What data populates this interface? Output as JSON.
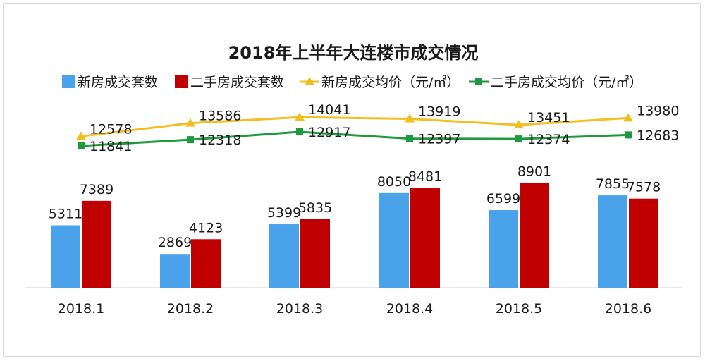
{
  "chart_data": {
    "type": "bar",
    "title": "2018年上半年大连楼市成交情况",
    "categories": [
      "2018.1",
      "2018.2",
      "2018.3",
      "2018.4",
      "2018.5",
      "2018.6"
    ],
    "bar_series": [
      {
        "name": "新房成交套数",
        "values": [
          5311,
          2869,
          5399,
          8050,
          6599,
          7855
        ],
        "color": "#4aa3ea"
      },
      {
        "name": "二手房成交套数",
        "values": [
          7389,
          4123,
          5835,
          8481,
          8901,
          7578
        ],
        "color": "#c00000"
      }
    ],
    "line_series": [
      {
        "name": "新房成交均价（元/㎡）",
        "values": [
          12578,
          13586,
          14041,
          13919,
          13451,
          13980
        ],
        "color": "#f0c020",
        "marker": "triangle"
      },
      {
        "name": "二手房成交均价（元/㎡）",
        "values": [
          11841,
          12318,
          12917,
          12397,
          12374,
          12683
        ],
        "color": "#1e9a3c",
        "marker": "square"
      }
    ],
    "bar_ylim": [
      0,
      9000
    ],
    "line_ylim": [
      0,
      14000
    ],
    "legend_position": "top",
    "grid": false
  }
}
